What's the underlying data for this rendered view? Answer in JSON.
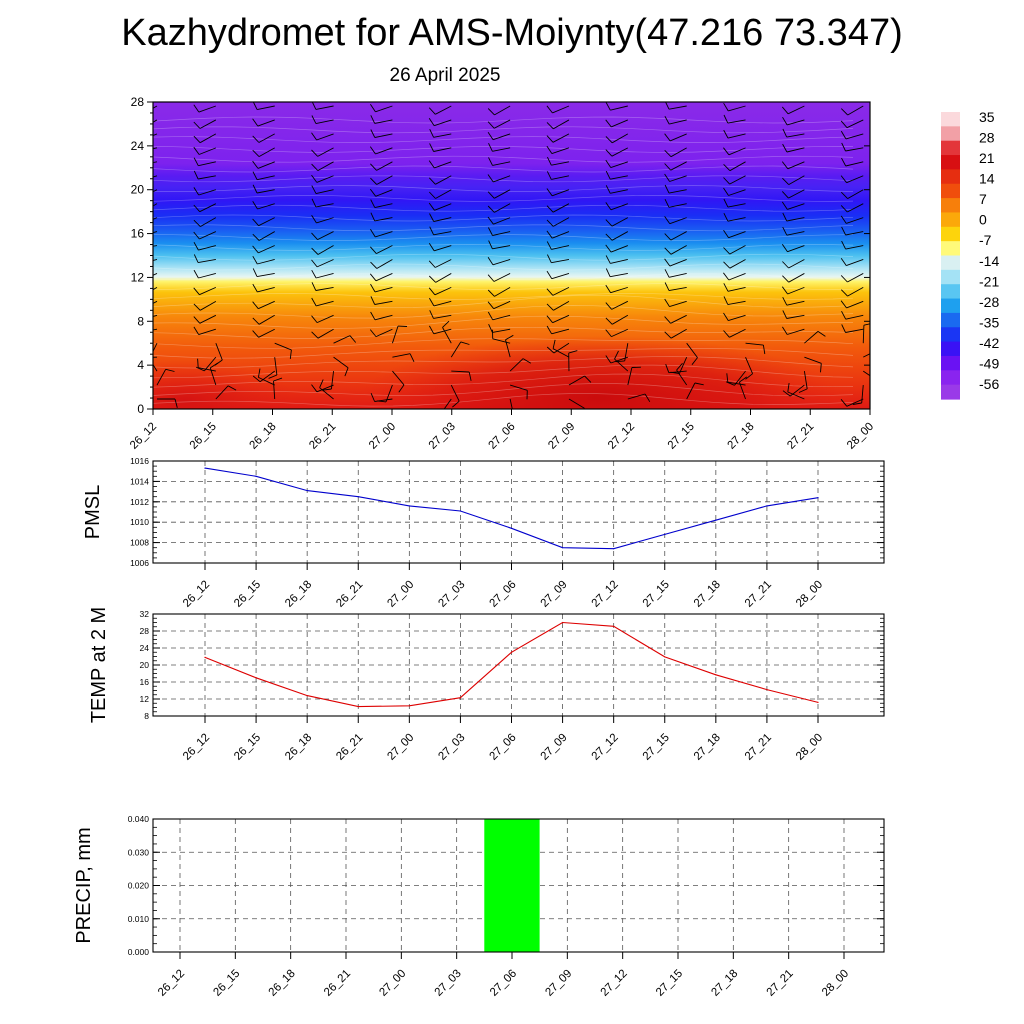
{
  "title": "Kazhydromet for AMS-Moiynty(47.216 73.347)",
  "subtitle": "26 April 2025",
  "time_labels": [
    "26_12",
    "26_15",
    "26_18",
    "26_21",
    "27_00",
    "27_03",
    "27_06",
    "27_09",
    "27_12",
    "27_15",
    "27_18",
    "27_21",
    "28_00"
  ],
  "chart_data": [
    {
      "type": "heatmap",
      "name": "vertical-temperature-wind-cross-section",
      "x": [
        "26_12",
        "26_15",
        "26_18",
        "26_21",
        "27_00",
        "27_03",
        "27_06",
        "27_09",
        "27_12",
        "27_15",
        "27_18",
        "27_21",
        "28_00"
      ],
      "ylim": [
        0,
        28
      ],
      "yticks": [
        0,
        4,
        8,
        12,
        16,
        20,
        24,
        28
      ],
      "colorbar": {
        "labels": [
          "35",
          "28",
          "21",
          "14",
          "7",
          "0",
          "-7",
          "-14",
          "-21",
          "-28",
          "-35",
          "-42",
          "-49",
          "-56"
        ],
        "colors": [
          "#fbd9dc",
          "#f2a0a6",
          "#e3363a",
          "#d80f12",
          "#e62e10",
          "#f04e0c",
          "#f77f0b",
          "#fba80a",
          "#fdd40c",
          "#fffa7a",
          "#d9f0f2",
          "#a4e2f5",
          "#59c6f2",
          "#1ea0ef",
          "#1a6af0",
          "#1a36f4",
          "#3a12f5",
          "#6a12f3",
          "#8a24ef",
          "#9a3ae8"
        ]
      },
      "grid": "contour lines, wind barbs"
    },
    {
      "type": "line",
      "name": "PMSL",
      "ylabel": "PMSL",
      "categories": [
        "26_12",
        "26_15",
        "26_18",
        "26_21",
        "27_00",
        "27_03",
        "27_06",
        "27_09",
        "27_12",
        "27_15",
        "27_18",
        "27_21",
        "28_00"
      ],
      "values": [
        1015.3,
        1014.5,
        1013.1,
        1012.5,
        1011.6,
        1011.1,
        1009.4,
        1007.5,
        1007.4,
        1008.8,
        1010.2,
        1011.6,
        1012.4
      ],
      "ylim": [
        1006,
        1016
      ],
      "yticks": [
        1006,
        1008,
        1010,
        1012,
        1014,
        1016
      ],
      "color": "#0000cc",
      "grid": true
    },
    {
      "type": "line",
      "name": "TEMP at 2 M",
      "ylabel": "TEMP at 2 M",
      "categories": [
        "26_12",
        "26_15",
        "26_18",
        "26_21",
        "27_00",
        "27_03",
        "27_06",
        "27_09",
        "27_12",
        "27_15",
        "27_18",
        "27_21",
        "28_00"
      ],
      "values": [
        21.8,
        17.0,
        12.8,
        10.2,
        10.4,
        12.3,
        23.0,
        30.0,
        29.1,
        21.9,
        17.7,
        14.2,
        11.2
      ],
      "ylim": [
        8,
        32
      ],
      "yticks": [
        8,
        12,
        16,
        20,
        24,
        28,
        32
      ],
      "color": "#dd0000",
      "grid": true
    },
    {
      "type": "bar",
      "name": "PRECIP, mm",
      "ylabel": "PRECIP, mm",
      "categories": [
        "26_12",
        "26_15",
        "26_18",
        "26_21",
        "27_00",
        "27_03",
        "27_06",
        "27_09",
        "27_12",
        "27_15",
        "27_18",
        "27_21",
        "28_00"
      ],
      "values": [
        0,
        0,
        0,
        0,
        0,
        0,
        0.04,
        0,
        0,
        0,
        0,
        0,
        0
      ],
      "ylim": [
        0,
        0.04
      ],
      "yticks": [
        "0.000",
        "0.010",
        "0.020",
        "0.030",
        "0.040"
      ],
      "color": "#00ff00",
      "grid": true
    }
  ]
}
